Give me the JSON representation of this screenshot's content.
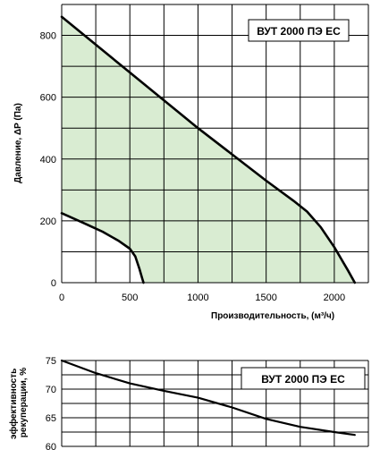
{
  "colors": {
    "fill": "#d9ecd2",
    "curve": "#000000",
    "grid": "#000000"
  },
  "chart_data": [
    {
      "type": "area",
      "model_label": "ВУТ 2000 ПЭ ЕС",
      "xlabel": "Производительность, (м³/ч)",
      "ylabel": "Давление, ΔP (Па)",
      "xlim": [
        0,
        2250
      ],
      "ylim": [
        0,
        900
      ],
      "xticks": [
        0,
        500,
        1000,
        1500,
        2000
      ],
      "yticks": [
        0,
        200,
        400,
        600,
        800
      ],
      "grid": true,
      "series": [
        {
          "values": [
            [
              0,
              860
            ],
            [
              250,
              770
            ],
            [
              500,
              680
            ],
            [
              750,
              590
            ],
            [
              1000,
              500
            ],
            [
              1250,
              415
            ],
            [
              1500,
              330
            ],
            [
              1700,
              265
            ],
            [
              1800,
              230
            ],
            [
              1900,
              180
            ],
            [
              2000,
              115
            ],
            [
              2100,
              40
            ],
            [
              2150,
              0
            ]
          ]
        },
        {
          "values": [
            [
              0,
              225
            ],
            [
              150,
              195
            ],
            [
              300,
              165
            ],
            [
              420,
              135
            ],
            [
              500,
              110
            ],
            [
              540,
              85
            ],
            [
              570,
              45
            ],
            [
              590,
              15
            ],
            [
              600,
              0
            ]
          ]
        }
      ]
    },
    {
      "type": "line",
      "model_label": "ВУТ 2000 ПЭ ЕС",
      "ylabel": "эффективность рекуперации, %",
      "xlim": [
        0,
        2250
      ],
      "ylim": [
        60,
        75
      ],
      "yticks": [
        60,
        65,
        70,
        75
      ],
      "grid": true,
      "series": [
        {
          "values": [
            [
              0,
              75
            ],
            [
              250,
              72.8
            ],
            [
              500,
              71
            ],
            [
              750,
              69.7
            ],
            [
              1000,
              68.5
            ],
            [
              1250,
              66.8
            ],
            [
              1500,
              64.8
            ],
            [
              1750,
              63.4
            ],
            [
              2000,
              62.5
            ],
            [
              2150,
              62
            ]
          ]
        }
      ]
    }
  ]
}
